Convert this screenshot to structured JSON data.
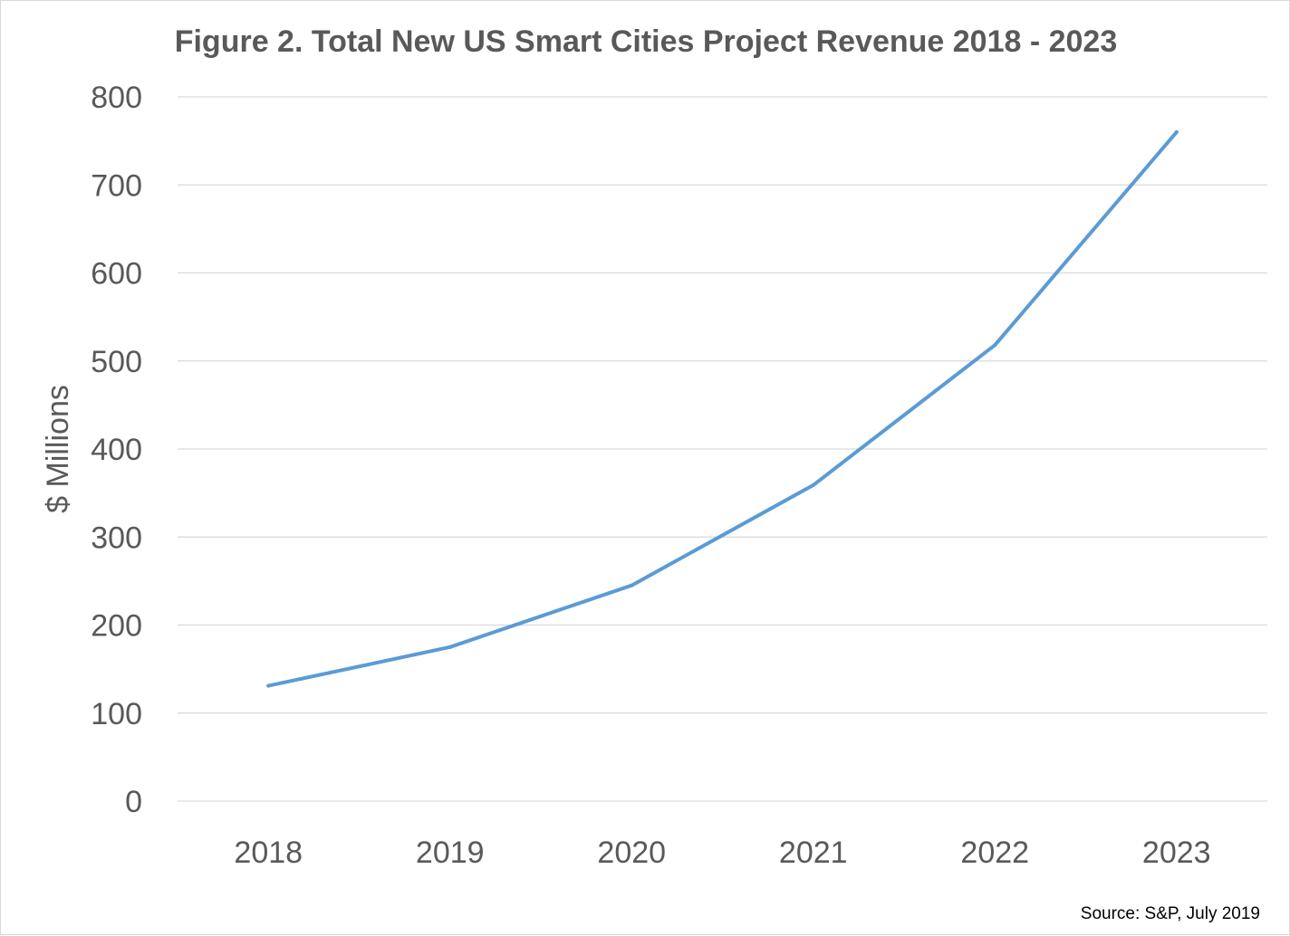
{
  "chart_data": {
    "type": "line",
    "title": "Figure 2. Total New US Smart Cities Project Revenue 2018 - 2023",
    "xlabel": "",
    "ylabel": "$ Millions",
    "categories": [
      "2018",
      "2019",
      "2020",
      "2021",
      "2022",
      "2023"
    ],
    "series": [
      {
        "values": [
          131,
          175,
          245,
          359,
          518,
          760
        ],
        "color": "#5b9bd5"
      }
    ],
    "ylim": [
      0,
      800
    ],
    "yticks": [
      0,
      100,
      200,
      300,
      400,
      500,
      600,
      700,
      800
    ],
    "grid": true,
    "legend": "none",
    "gridline_color": "#d9d9d9",
    "source": "Source: S&P, July 2019"
  }
}
